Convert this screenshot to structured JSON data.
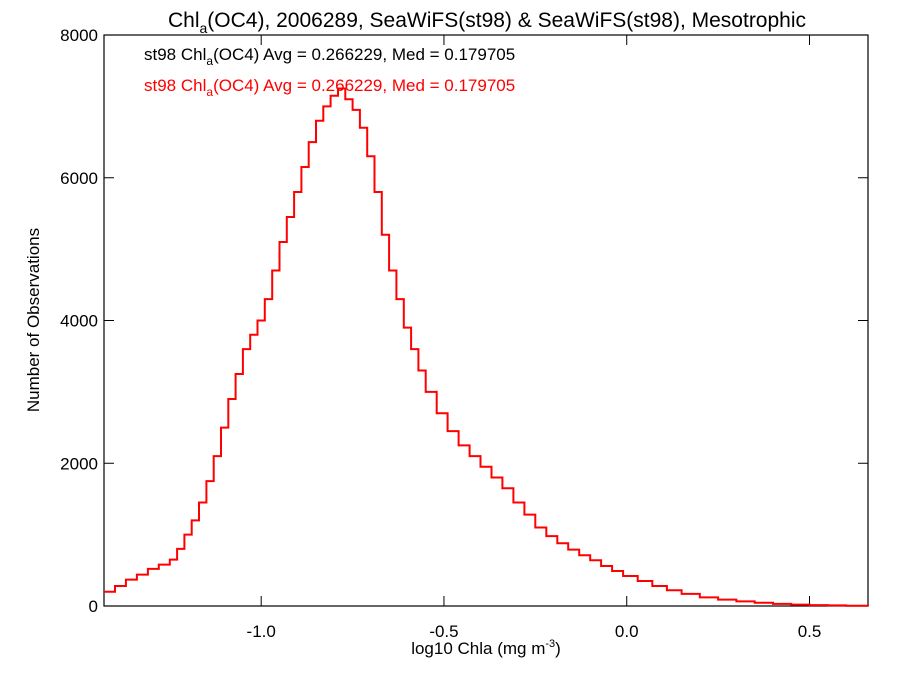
{
  "chart_data": {
    "type": "histogram",
    "title": {
      "prefix": "Chl",
      "sub": "a",
      "suffix": "(OC4), 2006289, SeaWiFS(st98) & SeaWiFS(st98), Mesotrophic"
    },
    "stats": [
      {
        "prefix": "st98 Chl",
        "sub": "a",
        "suffix": "(OC4) Avg = 0.266229, Med = 0.179705",
        "color": "#000000"
      },
      {
        "prefix": "st98 Chl",
        "sub": "a",
        "suffix": "(OC4) Avg = 0.266229, Med = 0.179705",
        "color": "#ff0000"
      }
    ],
    "xlabel": {
      "prefix": "log10 Chla (mg m",
      "sup": "-3",
      "suffix": ")"
    },
    "ylabel": "Number of Observations",
    "xlim": [
      -1.43,
      0.66
    ],
    "ylim": [
      0,
      8000
    ],
    "xticks": [
      -1.0,
      -0.5,
      0.0,
      0.5
    ],
    "xtick_labels": [
      "-1.0",
      "-0.5",
      "0.0",
      "0.5"
    ],
    "yticks": [
      0,
      2000,
      4000,
      6000,
      8000
    ],
    "ytick_labels": [
      "0",
      "2000",
      "4000",
      "6000",
      "8000"
    ],
    "grid": false,
    "series": [
      {
        "color": "#ff0000",
        "points": [
          [
            -1.43,
            200
          ],
          [
            -1.4,
            280
          ],
          [
            -1.37,
            370
          ],
          [
            -1.34,
            440
          ],
          [
            -1.31,
            520
          ],
          [
            -1.28,
            580
          ],
          [
            -1.25,
            650
          ],
          [
            -1.23,
            800
          ],
          [
            -1.21,
            1000
          ],
          [
            -1.19,
            1200
          ],
          [
            -1.17,
            1450
          ],
          [
            -1.15,
            1750
          ],
          [
            -1.13,
            2100
          ],
          [
            -1.11,
            2500
          ],
          [
            -1.09,
            2900
          ],
          [
            -1.07,
            3250
          ],
          [
            -1.05,
            3600
          ],
          [
            -1.03,
            3800
          ],
          [
            -1.01,
            4000
          ],
          [
            -0.99,
            4300
          ],
          [
            -0.97,
            4700
          ],
          [
            -0.95,
            5100
          ],
          [
            -0.93,
            5450
          ],
          [
            -0.91,
            5800
          ],
          [
            -0.89,
            6150
          ],
          [
            -0.87,
            6500
          ],
          [
            -0.85,
            6800
          ],
          [
            -0.83,
            7000
          ],
          [
            -0.81,
            7150
          ],
          [
            -0.79,
            7250
          ],
          [
            -0.77,
            7100
          ],
          [
            -0.75,
            6950
          ],
          [
            -0.73,
            6700
          ],
          [
            -0.71,
            6300
          ],
          [
            -0.69,
            5800
          ],
          [
            -0.67,
            5200
          ],
          [
            -0.65,
            4700
          ],
          [
            -0.63,
            4300
          ],
          [
            -0.61,
            3900
          ],
          [
            -0.59,
            3600
          ],
          [
            -0.57,
            3300
          ],
          [
            -0.55,
            3000
          ],
          [
            -0.52,
            2700
          ],
          [
            -0.49,
            2450
          ],
          [
            -0.46,
            2250
          ],
          [
            -0.43,
            2100
          ],
          [
            -0.4,
            1950
          ],
          [
            -0.37,
            1800
          ],
          [
            -0.34,
            1650
          ],
          [
            -0.31,
            1450
          ],
          [
            -0.28,
            1280
          ],
          [
            -0.25,
            1100
          ],
          [
            -0.22,
            980
          ],
          [
            -0.19,
            880
          ],
          [
            -0.16,
            790
          ],
          [
            -0.13,
            710
          ],
          [
            -0.1,
            640
          ],
          [
            -0.07,
            560
          ],
          [
            -0.04,
            490
          ],
          [
            -0.01,
            420
          ],
          [
            0.03,
            350
          ],
          [
            0.07,
            280
          ],
          [
            0.11,
            220
          ],
          [
            0.15,
            170
          ],
          [
            0.2,
            120
          ],
          [
            0.25,
            90
          ],
          [
            0.3,
            65
          ],
          [
            0.35,
            45
          ],
          [
            0.4,
            30
          ],
          [
            0.45,
            20
          ],
          [
            0.5,
            12
          ],
          [
            0.55,
            8
          ],
          [
            0.6,
            4
          ],
          [
            0.66,
            0
          ]
        ]
      }
    ]
  }
}
